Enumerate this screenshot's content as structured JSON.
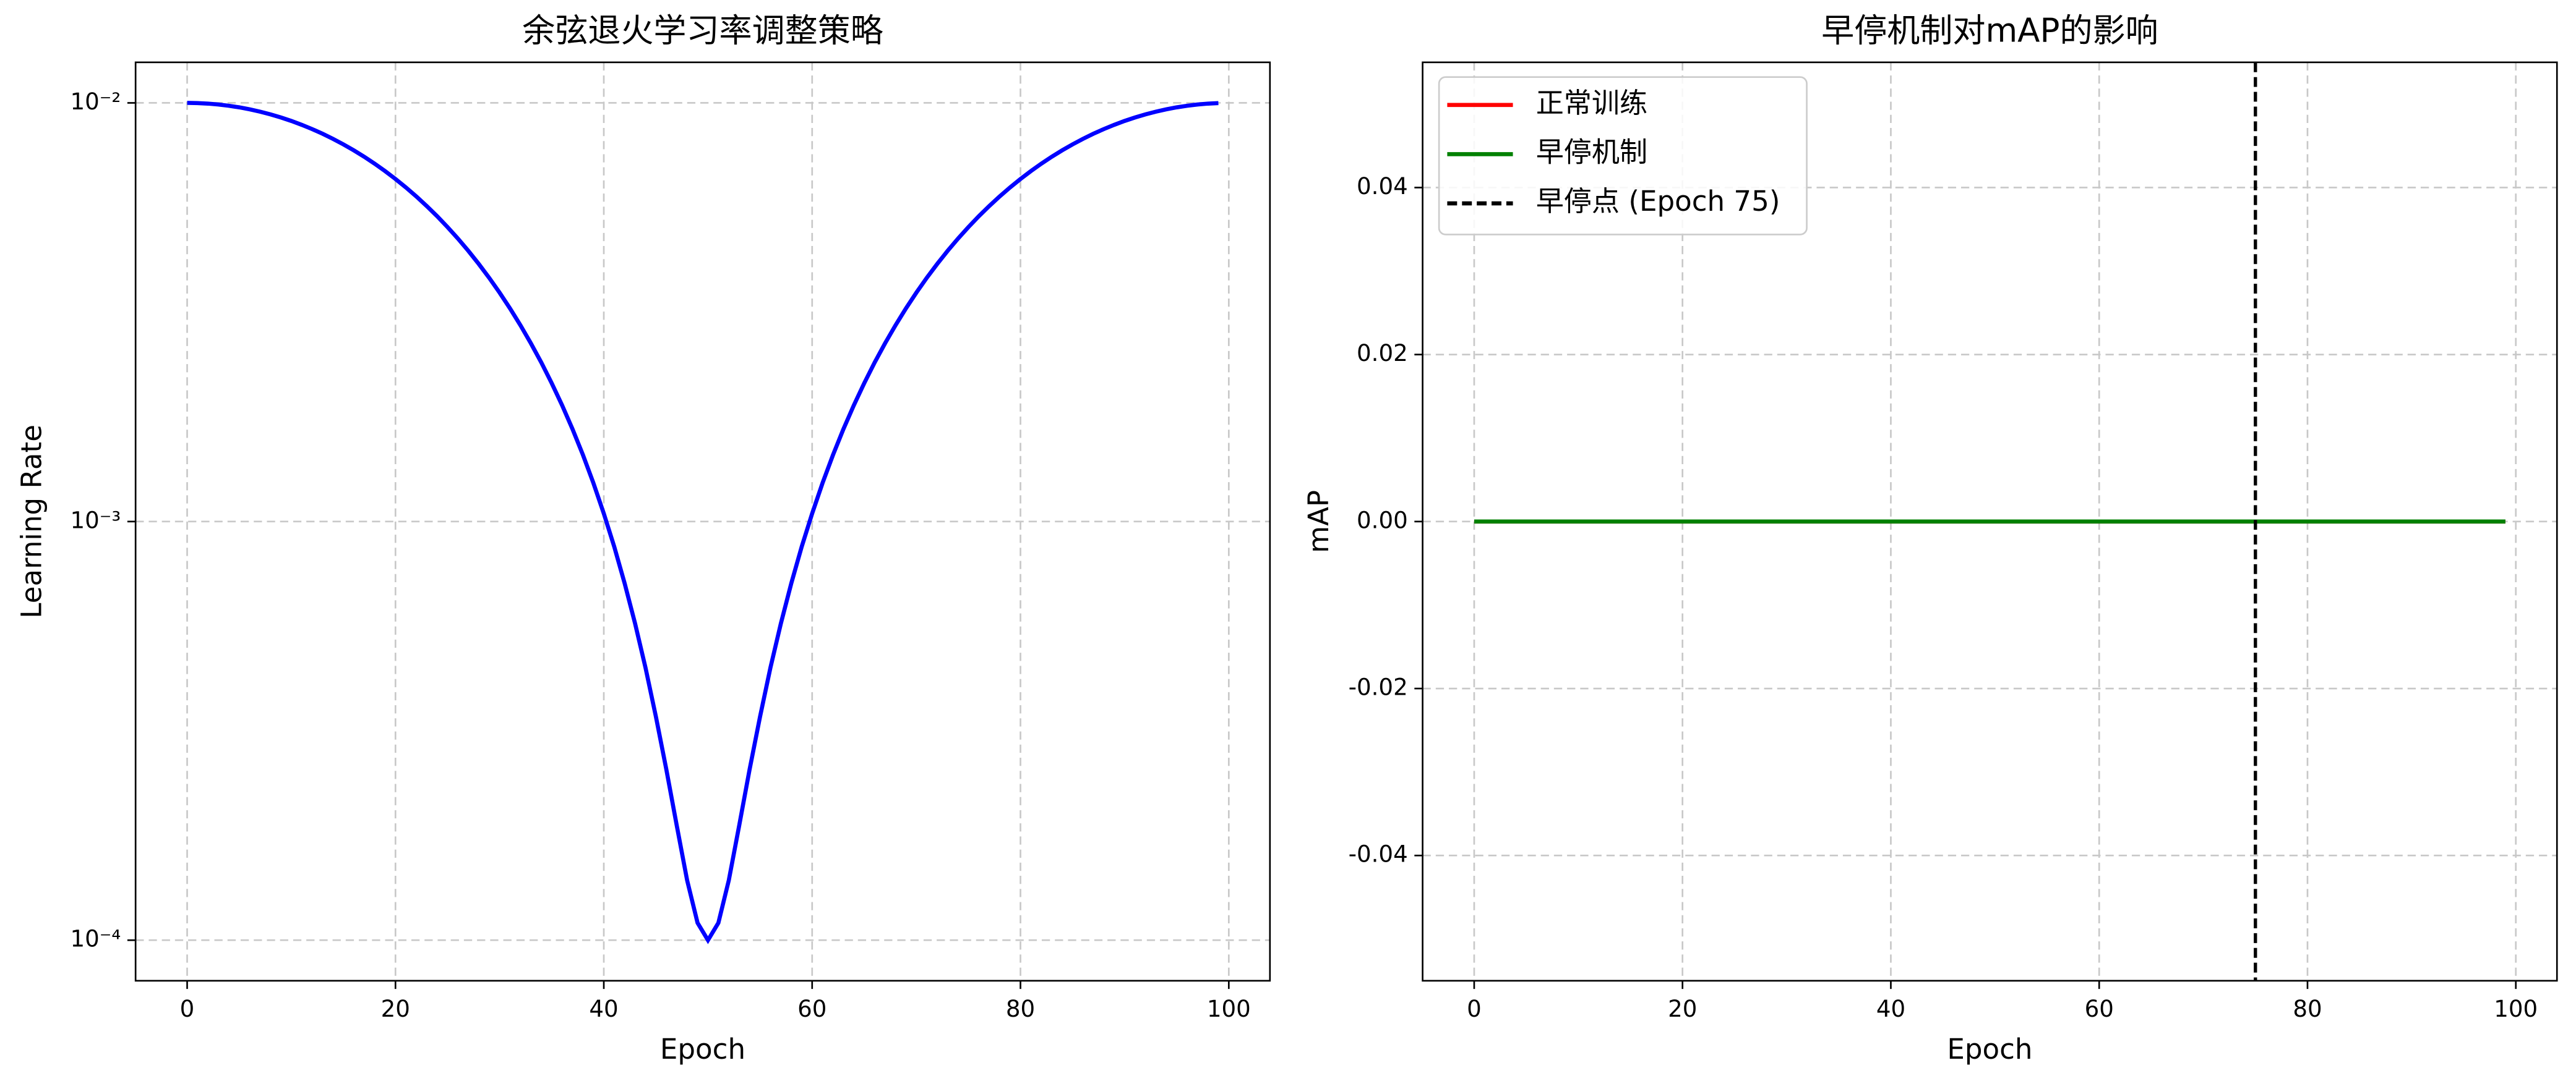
{
  "chart_data": [
    {
      "type": "line",
      "title": "余弦退火学习率调整策略",
      "xlabel": "Epoch",
      "ylabel": "Learning Rate",
      "log_y": true,
      "grid": true,
      "x": [
        0,
        1,
        2,
        3,
        4,
        5,
        6,
        7,
        8,
        9,
        10,
        11,
        12,
        13,
        14,
        15,
        16,
        17,
        18,
        19,
        20,
        21,
        22,
        23,
        24,
        25,
        26,
        27,
        28,
        29,
        30,
        31,
        32,
        33,
        34,
        35,
        36,
        37,
        38,
        39,
        40,
        41,
        42,
        43,
        44,
        45,
        46,
        47,
        48,
        49,
        50,
        51,
        52,
        53,
        54,
        55,
        56,
        57,
        58,
        59,
        60,
        61,
        62,
        63,
        64,
        65,
        66,
        67,
        68,
        69,
        70,
        71,
        72,
        73,
        74,
        75,
        76,
        77,
        78,
        79,
        80,
        81,
        82,
        83,
        84,
        85,
        86,
        87,
        88,
        89,
        90,
        91,
        92,
        93,
        94,
        95,
        96,
        97,
        98,
        99
      ],
      "series": [
        {
          "color": "#0000ff",
          "values": [
            0.01,
            0.00999,
            0.009961,
            0.009912,
            0.009844,
            0.009758,
            0.009652,
            0.009529,
            0.009388,
            0.009229,
            0.009055,
            0.008864,
            0.008658,
            0.008439,
            0.008205,
            0.00796,
            0.007702,
            0.007435,
            0.007158,
            0.006872,
            0.00658,
            0.006281,
            0.005978,
            0.00567,
            0.005361,
            0.00505,
            0.004739,
            0.00443,
            0.004122,
            0.003819,
            0.00352,
            0.003228,
            0.002942,
            0.002665,
            0.002398,
            0.00214,
            0.001895,
            0.001662,
            0.001442,
            0.001236,
            0.001045,
            0.000871,
            0.000712,
            0.000571,
            0.000448,
            0.000342,
            0.000256,
            0.000188,
            0.000139,
            0.00011,
            0.0001,
            0.00011,
            0.000139,
            0.000188,
            0.000256,
            0.000342,
            0.000448,
            0.000571,
            0.000712,
            0.000871,
            0.001045,
            0.001236,
            0.001442,
            0.001662,
            0.001895,
            0.00214,
            0.002398,
            0.002665,
            0.002942,
            0.003228,
            0.00352,
            0.003819,
            0.004122,
            0.00443,
            0.004739,
            0.00505,
            0.005361,
            0.00567,
            0.005978,
            0.006281,
            0.00658,
            0.006872,
            0.007158,
            0.007435,
            0.007702,
            0.00796,
            0.008205,
            0.008439,
            0.008658,
            0.008864,
            0.009055,
            0.009229,
            0.009388,
            0.009529,
            0.009652,
            0.009758,
            0.009844,
            0.009912,
            0.009961,
            0.00999
          ]
        }
      ],
      "xlim": [
        -4.95,
        103.95
      ],
      "xticks": [
        0,
        20,
        40,
        60,
        80,
        100
      ],
      "ylim": [
        8e-05,
        0.0125
      ],
      "yticks": [
        {
          "value": 0.0001,
          "label": "10⁻⁴"
        },
        {
          "value": 0.001,
          "label": "10⁻³"
        },
        {
          "value": 0.01,
          "label": "10⁻²"
        }
      ]
    },
    {
      "type": "line",
      "title": "早停机制对mAP的影响",
      "xlabel": "Epoch",
      "ylabel": "mAP",
      "grid": true,
      "legend": "upper left",
      "x": [
        0,
        1,
        2,
        3,
        4,
        5,
        6,
        7,
        8,
        9,
        10,
        11,
        12,
        13,
        14,
        15,
        16,
        17,
        18,
        19,
        20,
        21,
        22,
        23,
        24,
        25,
        26,
        27,
        28,
        29,
        30,
        31,
        32,
        33,
        34,
        35,
        36,
        37,
        38,
        39,
        40,
        41,
        42,
        43,
        44,
        45,
        46,
        47,
        48,
        49,
        50,
        51,
        52,
        53,
        54,
        55,
        56,
        57,
        58,
        59,
        60,
        61,
        62,
        63,
        64,
        65,
        66,
        67,
        68,
        69,
        70,
        71,
        72,
        73,
        74,
        75,
        76,
        77,
        78,
        79,
        80,
        81,
        82,
        83,
        84,
        85,
        86,
        87,
        88,
        89,
        90,
        91,
        92,
        93,
        94,
        95,
        96,
        97,
        98,
        99
      ],
      "series": [
        {
          "name": "正常训练",
          "color": "#ff0000",
          "values": [
            0,
            0,
            0,
            0,
            0,
            0,
            0,
            0,
            0,
            0,
            0,
            0,
            0,
            0,
            0,
            0,
            0,
            0,
            0,
            0,
            0,
            0,
            0,
            0,
            0,
            0,
            0,
            0,
            0,
            0,
            0,
            0,
            0,
            0,
            0,
            0,
            0,
            0,
            0,
            0,
            0,
            0,
            0,
            0,
            0,
            0,
            0,
            0,
            0,
            0,
            0,
            0,
            0,
            0,
            0,
            0,
            0,
            0,
            0,
            0,
            0,
            0,
            0,
            0,
            0,
            0,
            0,
            0,
            0,
            0,
            0,
            0,
            0,
            0,
            0,
            0,
            0,
            0,
            0,
            0,
            0,
            0,
            0,
            0,
            0,
            0,
            0,
            0,
            0,
            0,
            0,
            0,
            0,
            0,
            0,
            0,
            0,
            0,
            0,
            0
          ]
        },
        {
          "name": "早停机制",
          "color": "#008000",
          "values": [
            0,
            0,
            0,
            0,
            0,
            0,
            0,
            0,
            0,
            0,
            0,
            0,
            0,
            0,
            0,
            0,
            0,
            0,
            0,
            0,
            0,
            0,
            0,
            0,
            0,
            0,
            0,
            0,
            0,
            0,
            0,
            0,
            0,
            0,
            0,
            0,
            0,
            0,
            0,
            0,
            0,
            0,
            0,
            0,
            0,
            0,
            0,
            0,
            0,
            0,
            0,
            0,
            0,
            0,
            0,
            0,
            0,
            0,
            0,
            0,
            0,
            0,
            0,
            0,
            0,
            0,
            0,
            0,
            0,
            0,
            0,
            0,
            0,
            0,
            0,
            0,
            0,
            0,
            0,
            0,
            0,
            0,
            0,
            0,
            0,
            0,
            0,
            0,
            0,
            0,
            0,
            0,
            0,
            0,
            0,
            0,
            0,
            0,
            0,
            0
          ]
        }
      ],
      "vline": {
        "x": 75,
        "name": "早停点 (Epoch 75)",
        "color": "#000000"
      },
      "xlim": [
        -4.95,
        103.95
      ],
      "xticks": [
        0,
        20,
        40,
        60,
        80,
        100
      ],
      "ylim": [
        -0.055,
        0.055
      ],
      "yticks": [
        -0.04,
        -0.02,
        {
          "value": 0,
          "label": "0.00"
        },
        0.02,
        0.04
      ]
    }
  ]
}
